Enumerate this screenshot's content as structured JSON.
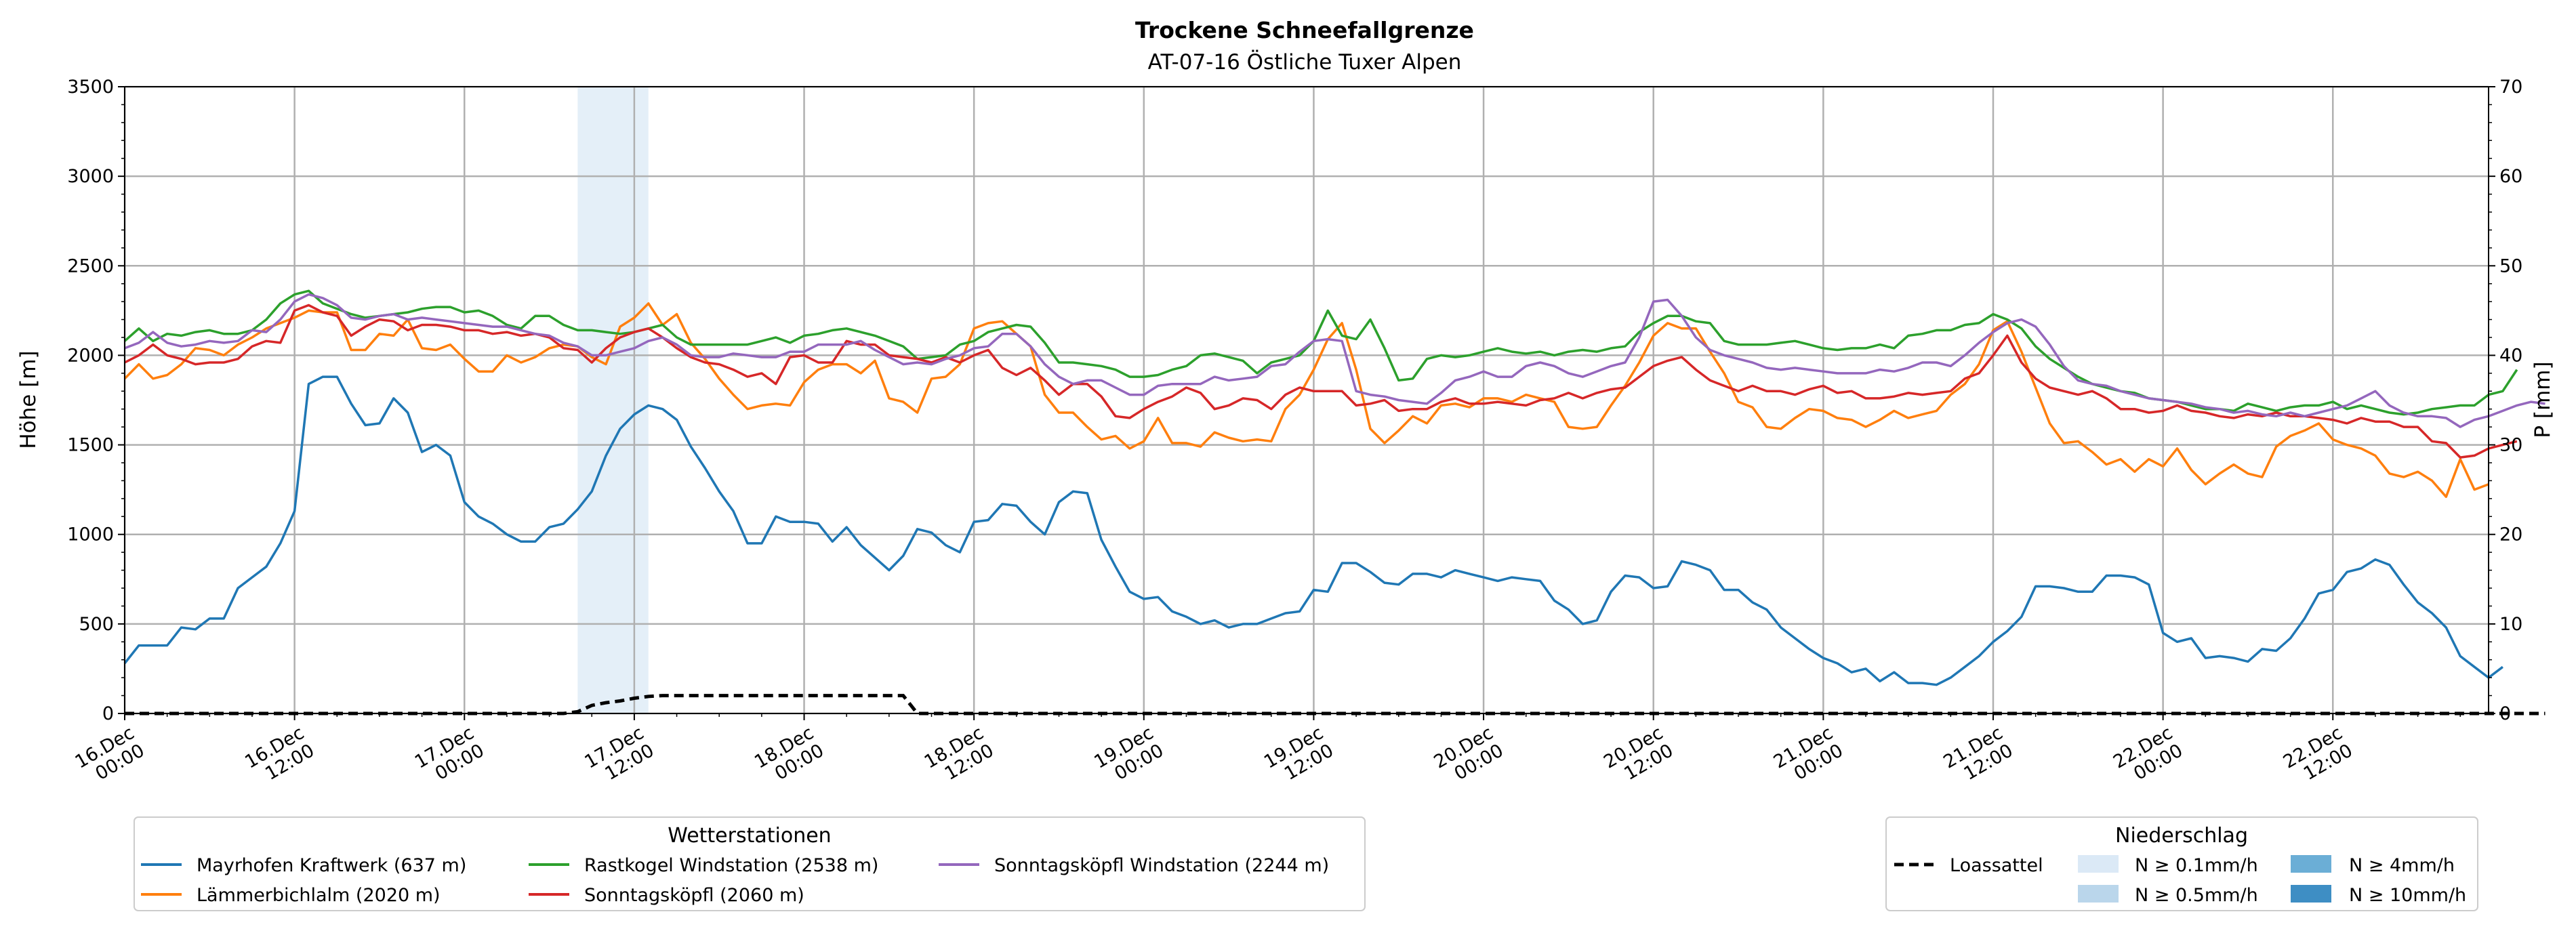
{
  "chart_data": {
    "type": "line",
    "title": "Trockene Schneefallgrenze",
    "subtitle": "AT-07-16 Östliche Tuxer Alpen",
    "ylabel": "Höhe [m]",
    "ylabel_right": "P [mm]",
    "ylim": [
      0,
      3500
    ],
    "ylim_right": [
      0,
      70
    ],
    "yticks": [
      0,
      500,
      1000,
      1500,
      2000,
      2500,
      3000,
      3500
    ],
    "yticks_right": [
      0,
      10,
      20,
      30,
      40,
      50,
      60,
      70
    ],
    "x_unit": "hours since 16.Dec 00:00",
    "xlim": [
      0,
      167
    ],
    "x_start": 0,
    "x_step": 1,
    "xticks": [
      {
        "x": 0,
        "label": [
          "16.Dec",
          "00:00"
        ]
      },
      {
        "x": 12,
        "label": [
          "16.Dec",
          "12:00"
        ]
      },
      {
        "x": 24,
        "label": [
          "17.Dec",
          "00:00"
        ]
      },
      {
        "x": 36,
        "label": [
          "17.Dec",
          "12:00"
        ]
      },
      {
        "x": 48,
        "label": [
          "18.Dec",
          "00:00"
        ]
      },
      {
        "x": 60,
        "label": [
          "18.Dec",
          "12:00"
        ]
      },
      {
        "x": 72,
        "label": [
          "19.Dec",
          "00:00"
        ]
      },
      {
        "x": 84,
        "label": [
          "19.Dec",
          "12:00"
        ]
      },
      {
        "x": 96,
        "label": [
          "20.Dec",
          "00:00"
        ]
      },
      {
        "x": 108,
        "label": [
          "20.Dec",
          "12:00"
        ]
      },
      {
        "x": 120,
        "label": [
          "21.Dec",
          "00:00"
        ]
      },
      {
        "x": 132,
        "label": [
          "21.Dec",
          "12:00"
        ]
      },
      {
        "x": 144,
        "label": [
          "22.Dec",
          "00:00"
        ]
      },
      {
        "x": 156,
        "label": [
          "22.Dec",
          "12:00"
        ]
      }
    ],
    "precip_band": {
      "x_from": 32,
      "x_to": 37,
      "class": "N ≥ 0.1mm/h"
    },
    "series": [
      {
        "name": "Mayrhofen Kraftwerk (637 m)",
        "color": "#1f77b4",
        "values": [
          280,
          380,
          380,
          380,
          480,
          470,
          530,
          530,
          700,
          760,
          820,
          950,
          1130,
          1840,
          1880,
          1880,
          1730,
          1610,
          1620,
          1760,
          1680,
          1460,
          1500,
          1440,
          1180,
          1100,
          1060,
          1000,
          960,
          960,
          1040,
          1060,
          1140,
          1240,
          1440,
          1590,
          1670,
          1720,
          1700,
          1640,
          1490,
          1370,
          1240,
          1130,
          950,
          950,
          1100,
          1070,
          1070,
          1060,
          960,
          1040,
          940,
          870,
          800,
          880,
          1030,
          1010,
          940,
          900,
          1070,
          1080,
          1170,
          1160,
          1070,
          1000,
          1180,
          1240,
          1230,
          970,
          820,
          680,
          640,
          650,
          570,
          540,
          500,
          520,
          480,
          500,
          500,
          530,
          560,
          570,
          690,
          680,
          840,
          840,
          790,
          730,
          720,
          780,
          780,
          760,
          800,
          780,
          760,
          740,
          760,
          750,
          740,
          630,
          580,
          500,
          520,
          680,
          770,
          760,
          700,
          710,
          850,
          830,
          800,
          690,
          690,
          620,
          580,
          480,
          420,
          360,
          310,
          280,
          230,
          250,
          180,
          230,
          170,
          170,
          160,
          200,
          260,
          320,
          400,
          460,
          540,
          710,
          710,
          700,
          680,
          680,
          770,
          770,
          760,
          720,
          450,
          400,
          420,
          310,
          320,
          310,
          290,
          360,
          350,
          420,
          530,
          670,
          690,
          790,
          810,
          860,
          830,
          720,
          620,
          560,
          480,
          320,
          260,
          200,
          260
        ]
      },
      {
        "name": "Lämmerbichlalm (2020 m)",
        "color": "#ff7f0e",
        "values": [
          1870,
          1950,
          1870,
          1890,
          1950,
          2040,
          2030,
          2000,
          2060,
          2100,
          2150,
          2180,
          2210,
          2250,
          2240,
          2240,
          2030,
          2030,
          2120,
          2110,
          2200,
          2040,
          2030,
          2060,
          1980,
          1910,
          1910,
          2000,
          1960,
          1990,
          2040,
          2060,
          2050,
          1990,
          1950,
          2160,
          2210,
          2290,
          2170,
          2230,
          2070,
          1980,
          1870,
          1780,
          1700,
          1720,
          1730,
          1720,
          1850,
          1920,
          1950,
          1950,
          1900,
          1970,
          1760,
          1740,
          1680,
          1870,
          1880,
          1950,
          2150,
          2180,
          2190,
          2120,
          2050,
          1780,
          1680,
          1680,
          1600,
          1530,
          1550,
          1480,
          1520,
          1650,
          1510,
          1510,
          1490,
          1570,
          1540,
          1520,
          1530,
          1520,
          1700,
          1780,
          1920,
          2090,
          2180,
          1920,
          1590,
          1510,
          1580,
          1660,
          1620,
          1720,
          1730,
          1710,
          1760,
          1760,
          1740,
          1780,
          1760,
          1740,
          1600,
          1590,
          1600,
          1720,
          1830,
          1960,
          2110,
          2180,
          2150,
          2150,
          2020,
          1900,
          1740,
          1710,
          1600,
          1590,
          1650,
          1700,
          1690,
          1650,
          1640,
          1600,
          1640,
          1690,
          1650,
          1670,
          1690,
          1780,
          1840,
          1950,
          2140,
          2190,
          2020,
          1820,
          1620,
          1510,
          1520,
          1460,
          1390,
          1420,
          1350,
          1420,
          1380,
          1480,
          1360,
          1280,
          1340,
          1390,
          1340,
          1320,
          1490,
          1550,
          1580,
          1620,
          1530,
          1500,
          1480,
          1440,
          1340,
          1320,
          1350,
          1300,
          1210,
          1420,
          1250,
          1280
        ]
      },
      {
        "name": "Rastkogel Windstation (2538 m)",
        "color": "#2ca02c",
        "values": [
          2080,
          2150,
          2080,
          2120,
          2110,
          2130,
          2140,
          2120,
          2120,
          2140,
          2200,
          2290,
          2340,
          2360,
          2290,
          2260,
          2230,
          2210,
          2220,
          2230,
          2240,
          2260,
          2270,
          2270,
          2240,
          2250,
          2220,
          2170,
          2150,
          2220,
          2220,
          2170,
          2140,
          2140,
          2130,
          2120,
          2130,
          2150,
          2170,
          2100,
          2060,
          2060,
          2060,
          2060,
          2060,
          2080,
          2100,
          2070,
          2110,
          2120,
          2140,
          2150,
          2130,
          2110,
          2080,
          2050,
          1980,
          1990,
          2000,
          2060,
          2080,
          2130,
          2150,
          2170,
          2160,
          2070,
          1960,
          1960,
          1950,
          1940,
          1920,
          1880,
          1880,
          1890,
          1920,
          1940,
          2000,
          2010,
          1990,
          1970,
          1900,
          1960,
          1980,
          2000,
          2080,
          2250,
          2110,
          2090,
          2200,
          2040,
          1860,
          1870,
          1980,
          2000,
          1990,
          2000,
          2020,
          2040,
          2020,
          2010,
          2020,
          2000,
          2020,
          2030,
          2020,
          2040,
          2050,
          2130,
          2180,
          2220,
          2220,
          2190,
          2180,
          2080,
          2060,
          2060,
          2060,
          2070,
          2080,
          2060,
          2040,
          2030,
          2040,
          2040,
          2060,
          2040,
          2110,
          2120,
          2140,
          2140,
          2170,
          2180,
          2230,
          2200,
          2150,
          2050,
          1980,
          1930,
          1880,
          1840,
          1820,
          1800,
          1790,
          1760,
          1750,
          1740,
          1720,
          1700,
          1700,
          1690,
          1730,
          1710,
          1690,
          1710,
          1720,
          1720,
          1740,
          1700,
          1720,
          1700,
          1680,
          1670,
          1680,
          1700,
          1710,
          1720,
          1720,
          1780,
          1800,
          1920
        ]
      },
      {
        "name": "Sonntagsköpfl (2060 m)",
        "color": "#d62728",
        "values": [
          1960,
          2000,
          2060,
          2000,
          1980,
          1950,
          1960,
          1960,
          1980,
          2050,
          2080,
          2070,
          2250,
          2280,
          2240,
          2220,
          2110,
          2160,
          2200,
          2190,
          2140,
          2170,
          2170,
          2160,
          2140,
          2140,
          2120,
          2130,
          2110,
          2120,
          2100,
          2040,
          2030,
          1960,
          2040,
          2100,
          2130,
          2150,
          2100,
          2040,
          1990,
          1960,
          1950,
          1920,
          1880,
          1900,
          1840,
          1990,
          2000,
          1960,
          1960,
          2080,
          2060,
          2060,
          2000,
          1990,
          1980,
          1960,
          1990,
          1960,
          2000,
          2030,
          1930,
          1890,
          1930,
          1860,
          1780,
          1840,
          1840,
          1770,
          1660,
          1650,
          1700,
          1740,
          1770,
          1820,
          1790,
          1700,
          1720,
          1760,
          1750,
          1700,
          1780,
          1820,
          1800,
          1800,
          1800,
          1720,
          1730,
          1750,
          1690,
          1700,
          1700,
          1740,
          1760,
          1730,
          1730,
          1740,
          1730,
          1720,
          1750,
          1760,
          1790,
          1760,
          1790,
          1810,
          1820,
          1880,
          1940,
          1970,
          1990,
          1920,
          1860,
          1830,
          1800,
          1830,
          1800,
          1800,
          1780,
          1810,
          1830,
          1790,
          1800,
          1760,
          1760,
          1770,
          1790,
          1780,
          1790,
          1800,
          1870,
          1900,
          2000,
          2110,
          1960,
          1870,
          1820,
          1800,
          1780,
          1800,
          1760,
          1700,
          1700,
          1680,
          1690,
          1720,
          1690,
          1680,
          1660,
          1650,
          1670,
          1660,
          1680,
          1660,
          1660,
          1650,
          1640,
          1620,
          1650,
          1630,
          1630,
          1600,
          1600,
          1520,
          1510,
          1430,
          1440,
          1480,
          1500,
          1520
        ]
      },
      {
        "name": "Sonntagsköpfl Windstation (2244 m)",
        "color": "#9467bd",
        "values": [
          2040,
          2070,
          2130,
          2070,
          2050,
          2060,
          2080,
          2070,
          2080,
          2140,
          2130,
          2200,
          2300,
          2340,
          2320,
          2280,
          2210,
          2200,
          2220,
          2230,
          2200,
          2210,
          2200,
          2190,
          2180,
          2170,
          2160,
          2160,
          2140,
          2120,
          2110,
          2070,
          2050,
          2000,
          2000,
          2020,
          2040,
          2080,
          2100,
          2060,
          2000,
          1990,
          1990,
          2010,
          2000,
          1990,
          1990,
          2020,
          2020,
          2060,
          2060,
          2060,
          2080,
          2030,
          1990,
          1950,
          1960,
          1950,
          1980,
          2000,
          2040,
          2050,
          2120,
          2120,
          2050,
          1950,
          1880,
          1840,
          1860,
          1860,
          1820,
          1780,
          1780,
          1830,
          1840,
          1840,
          1840,
          1880,
          1860,
          1870,
          1880,
          1940,
          1950,
          2020,
          2080,
          2090,
          2080,
          1800,
          1780,
          1770,
          1750,
          1740,
          1730,
          1790,
          1860,
          1880,
          1910,
          1880,
          1880,
          1940,
          1960,
          1940,
          1900,
          1880,
          1910,
          1940,
          1960,
          2100,
          2300,
          2310,
          2220,
          2100,
          2030,
          2000,
          1980,
          1960,
          1930,
          1920,
          1930,
          1920,
          1910,
          1900,
          1900,
          1900,
          1920,
          1910,
          1930,
          1960,
          1960,
          1940,
          2000,
          2070,
          2130,
          2180,
          2200,
          2160,
          2060,
          1940,
          1860,
          1840,
          1830,
          1800,
          1780,
          1760,
          1750,
          1740,
          1730,
          1710,
          1700,
          1680,
          1690,
          1670,
          1660,
          1680,
          1660,
          1680,
          1700,
          1720,
          1760,
          1800,
          1720,
          1680,
          1660,
          1660,
          1650,
          1600,
          1640,
          1660,
          1690,
          1720,
          1740,
          1730
        ]
      }
    ],
    "loassattel": {
      "name": "Loassattel",
      "color": "#000000",
      "values": [
        0,
        0,
        0,
        0,
        0,
        0,
        0,
        0,
        0,
        0,
        0,
        0,
        0,
        0,
        0,
        0,
        0,
        0,
        0,
        0,
        0,
        0,
        0,
        0,
        0,
        0,
        0,
        0,
        0,
        0,
        0,
        0,
        10,
        45,
        60,
        70,
        85,
        95,
        100,
        100,
        100,
        100,
        100,
        100,
        100,
        100,
        100,
        100,
        100,
        100,
        100,
        100,
        100,
        100,
        100,
        100,
        0,
        0,
        0,
        0,
        0,
        0,
        0,
        0,
        0,
        0,
        0,
        0,
        0,
        0,
        0,
        0,
        0,
        0,
        0,
        0,
        0,
        0,
        0,
        0,
        0,
        0,
        0,
        0,
        0,
        0,
        0,
        0,
        0,
        0,
        0,
        0,
        0,
        0,
        0,
        0,
        0,
        0,
        0,
        0,
        0,
        0,
        0,
        0,
        0,
        0,
        0,
        0,
        0,
        0,
        0,
        0,
        0,
        0,
        0,
        0,
        0,
        0,
        0,
        0,
        0,
        0,
        0,
        0,
        0,
        0,
        0,
        0,
        0,
        0,
        0,
        0,
        0,
        0,
        0,
        0,
        0,
        0,
        0,
        0,
        0,
        0,
        0,
        0,
        0,
        0,
        0,
        0,
        0,
        0,
        0,
        0,
        0,
        0,
        0,
        0,
        0,
        0,
        0,
        0,
        0,
        0,
        0,
        0,
        0,
        0,
        0,
        0,
        0,
        0,
        0,
        0
      ]
    },
    "legend_stations": {
      "title": "Wetterstationen",
      "location": "bottom-left"
    },
    "legend_precip": {
      "title": "Niederschlag",
      "location": "bottom-right",
      "items": [
        {
          "label": "N ≥ 0.1mm/h",
          "color": "#dbe9f6"
        },
        {
          "label": "N ≥ 4mm/h",
          "color": "#6baed6"
        },
        {
          "label": "N ≥ 0.5mm/h",
          "color": "#bad6eb"
        },
        {
          "label": "N ≥ 10mm/h",
          "color": "#3e8ec4"
        }
      ]
    }
  }
}
